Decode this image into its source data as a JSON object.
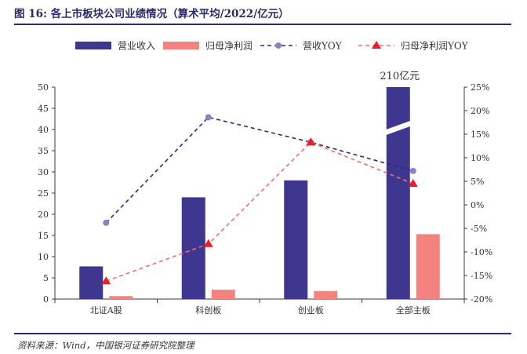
{
  "header": {
    "figure_label": "图 16:",
    "title": "各上市板块公司业绩情况（算术平均/2022/亿元）"
  },
  "footer": {
    "source": "资料来源：Wind，中国银河证券研究院整理"
  },
  "colors": {
    "revenue_bar": "#3f3690",
    "profit_bar": "#f4827f",
    "revenue_yoy_line": "#2c2880",
    "revenue_yoy_marker": "#8a84c2",
    "profit_yoy_line": "#f26e6e",
    "profit_yoy_marker": "#ee1c24",
    "axis": "#3a3a3a"
  },
  "chart_data": {
    "type": "bar",
    "categories": [
      "北证A股",
      "科创板",
      "创业板",
      "全部主板"
    ],
    "series": [
      {
        "name": "营业收入",
        "kind": "bar",
        "axis": "left",
        "values": [
          7.7,
          24,
          28,
          210
        ]
      },
      {
        "name": "归母净利润",
        "kind": "bar",
        "axis": "left",
        "values": [
          0.7,
          2.2,
          1.9,
          15.3
        ]
      },
      {
        "name": "营收YOY",
        "kind": "line",
        "axis": "right",
        "unit": "%",
        "values": [
          -3.8,
          18.6,
          13.3,
          7.2
        ]
      },
      {
        "name": "归母净利润YOY",
        "kind": "line",
        "axis": "right",
        "unit": "%",
        "values": [
          -16.2,
          -8.3,
          13.3,
          4.5
        ]
      }
    ],
    "left_axis": {
      "min": 0,
      "max": 50,
      "step": 5
    },
    "right_axis": {
      "min": -20,
      "max": 25,
      "step": 5,
      "unit": "%"
    },
    "axis_break": {
      "category": "全部主板",
      "series": "营业收入"
    },
    "annotation": "210亿元",
    "legend_position": "top"
  }
}
